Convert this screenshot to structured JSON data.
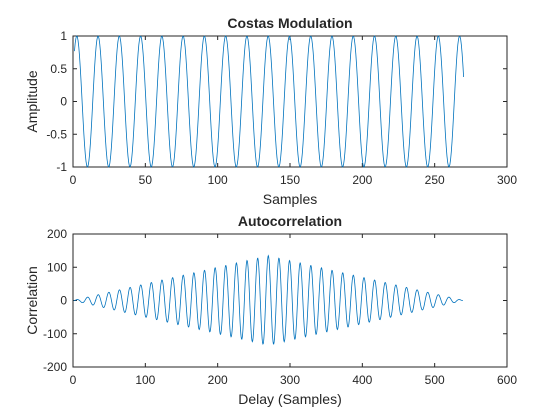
{
  "chart_data": [
    {
      "type": "line",
      "title": "Costas Modulation",
      "xlabel": "Samples",
      "ylabel": "Amplitude",
      "xlim": [
        0,
        300
      ],
      "ylim": [
        -1,
        1
      ],
      "xticks": [
        0,
        50,
        100,
        150,
        200,
        250,
        300
      ],
      "yticks": [
        -1,
        -0.5,
        0,
        0.5,
        1
      ],
      "xtick_labels": [
        "0",
        "50",
        "100",
        "150",
        "200",
        "250",
        "300"
      ],
      "ytick_labels": [
        "-1",
        "-0.5",
        "0",
        "0.5",
        "1"
      ],
      "grid": false,
      "line_color": "#0072BD",
      "series": [
        {
          "x_start": 1,
          "x_end": 270,
          "waveform": "sinusoid",
          "amplitude": 1,
          "period_samples": 14.7,
          "phase_rad": 0.45
        }
      ]
    },
    {
      "type": "line",
      "title": "Autocorrelation",
      "xlabel": "Delay (Samples)",
      "ylabel": "Correlation",
      "xlim": [
        0,
        600
      ],
      "ylim": [
        -200,
        200
      ],
      "xticks": [
        0,
        100,
        200,
        300,
        400,
        500,
        600
      ],
      "yticks": [
        -200,
        -100,
        0,
        100,
        200
      ],
      "xtick_labels": [
        "0",
        "100",
        "200",
        "300",
        "400",
        "500",
        "600"
      ],
      "ytick_labels": [
        "-200",
        "-100",
        "0",
        "100",
        "200"
      ],
      "grid": false,
      "line_color": "#0072BD",
      "series": [
        {
          "x_start": 1,
          "x_end": 539,
          "waveform": "triangle-enveloped sinusoid",
          "peak_x": 270,
          "peak_value": 135,
          "period_samples": 14.7
        }
      ]
    }
  ]
}
